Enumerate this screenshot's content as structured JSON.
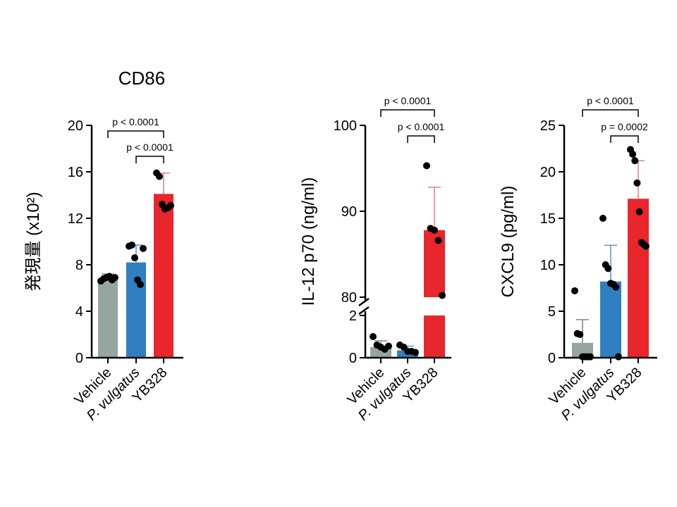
{
  "chart_data": [
    {
      "type": "bar",
      "title": "CD86",
      "ylabel": "発現量 (x10²)",
      "categories": [
        "Vehicle",
        "P. vulgatus",
        "YB328"
      ],
      "italic_categories": [
        false,
        true,
        false
      ],
      "colors": [
        "#95a5a0",
        "#2f7fc1",
        "#e8262b"
      ],
      "error_colors": [
        "#7f8c8a",
        "#5e9bd0",
        "#e8898b"
      ],
      "ylim": [
        0,
        20
      ],
      "yticks": [
        0,
        4,
        8,
        12,
        16,
        20
      ],
      "values": [
        6.7,
        8.2,
        14.1
      ],
      "errors": [
        0.5,
        1.5,
        1.8
      ],
      "points": [
        [
          6.6,
          6.8,
          6.9,
          7.0,
          6.7,
          6.9
        ],
        [
          9.6,
          9.7,
          8.6,
          6.7,
          6.3,
          9.4
        ],
        [
          15.9,
          15.6,
          13.2,
          12.8,
          12.9,
          13.1
        ]
      ],
      "comparisons": [
        {
          "from": 0,
          "to": 2,
          "label": "p < 0.0001"
        },
        {
          "from": 1,
          "to": 2,
          "label": "p < 0.0001"
        }
      ]
    },
    {
      "type": "bar",
      "title": "",
      "ylabel": "IL-12 p70 (ng/ml)",
      "categories": [
        "Vehicle",
        "P. vulgatus",
        "YB328"
      ],
      "italic_categories": [
        false,
        true,
        false
      ],
      "colors": [
        "#95a5a0",
        "#2f7fc1",
        "#e8262b"
      ],
      "error_colors": [
        "#7f8c8a",
        "#5e9bd0",
        "#e8898b"
      ],
      "axis_break": {
        "lower": [
          0,
          2
        ],
        "upper": [
          80,
          100
        ]
      },
      "yticks_lower": [
        0,
        2
      ],
      "yticks_upper": [
        80,
        90,
        100
      ],
      "values": [
        0.5,
        0.35,
        87.8
      ],
      "errors": [
        0.3,
        0.2,
        5.0
      ],
      "points": [
        [
          1.0,
          0.6,
          0.5,
          0.4,
          0.55
        ],
        [
          0.6,
          0.5,
          0.3,
          0.3,
          0.25
        ],
        [
          95.3,
          88.0,
          87.8,
          86.6,
          80.2
        ]
      ],
      "comparisons": [
        {
          "from": 0,
          "to": 2,
          "label": "p < 0.0001"
        },
        {
          "from": 1,
          "to": 2,
          "label": "p < 0.0001"
        }
      ]
    },
    {
      "type": "bar",
      "title": "",
      "ylabel": "CXCL9 (pg/ml)",
      "categories": [
        "Vehicle",
        "P. vulgatus",
        "YB328"
      ],
      "italic_categories": [
        false,
        true,
        false
      ],
      "colors": [
        "#95a5a0",
        "#2f7fc1",
        "#e8262b"
      ],
      "error_colors": [
        "#7f8c8a",
        "#5e9bd0",
        "#e8898b"
      ],
      "ylim": [
        0,
        25
      ],
      "yticks": [
        0,
        5,
        10,
        15,
        20,
        25
      ],
      "values": [
        1.6,
        8.2,
        17.1
      ],
      "errors": [
        2.5,
        3.9,
        4.1
      ],
      "points": [
        [
          7.2,
          2.6,
          2.5,
          0.1,
          0.1,
          0.1,
          0.1
        ],
        [
          15.0,
          10.0,
          9.6,
          8.0,
          7.9,
          7.6,
          0.1
        ],
        [
          22.4,
          21.9,
          21.2,
          18.8,
          15.7,
          12.4,
          12.2,
          12.0
        ]
      ],
      "comparisons": [
        {
          "from": 0,
          "to": 2,
          "label": "p < 0.0001"
        },
        {
          "from": 1,
          "to": 2,
          "label": "p = 0.0002"
        }
      ]
    }
  ]
}
